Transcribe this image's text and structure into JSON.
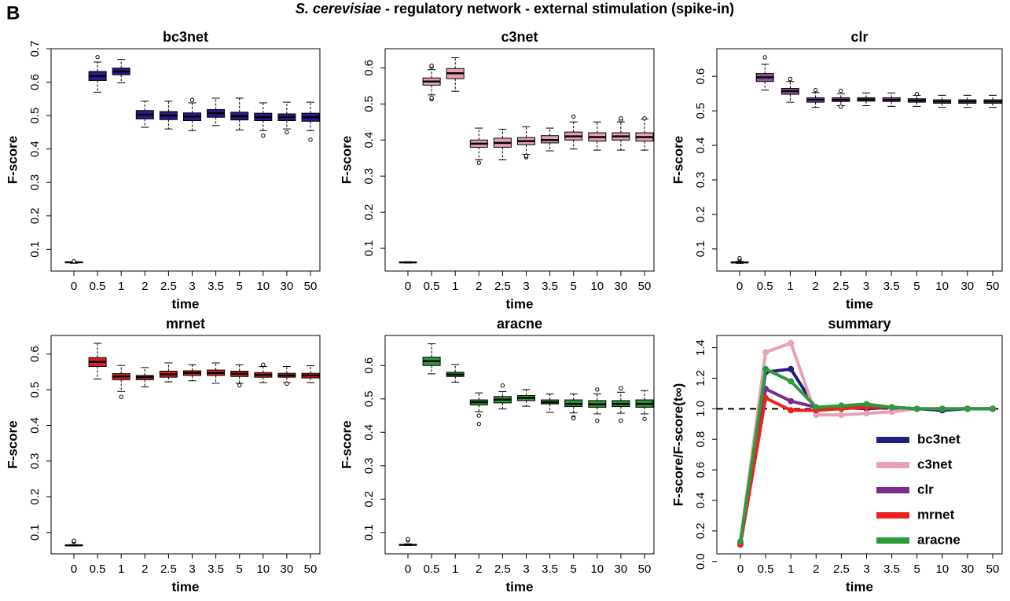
{
  "figure": {
    "label": "B",
    "title_species": "S. cerevisiae",
    "title_rest": "- regulatory network - external stimulation (spike-in)"
  },
  "chart_data": [
    {
      "type": "box",
      "title": "bc3net",
      "xlabel": "time",
      "ylabel": "F-score",
      "color": "#2b1b8c",
      "categories": [
        "0",
        "0.5",
        "1",
        "2",
        "2.5",
        "3",
        "3.5",
        "5",
        "10",
        "30",
        "50"
      ],
      "ylim": [
        0.035,
        0.7
      ],
      "yticks": [
        0.1,
        0.2,
        0.3,
        0.4,
        0.5,
        0.6,
        0.7
      ],
      "boxes": [
        {
          "min": 0.058,
          "q1": 0.06,
          "median": 0.061,
          "q3": 0.062,
          "max": 0.063,
          "outliers": [
            0.064
          ]
        },
        {
          "min": 0.57,
          "q1": 0.605,
          "median": 0.618,
          "q3": 0.632,
          "max": 0.66,
          "outliers": [
            0.675
          ]
        },
        {
          "min": 0.598,
          "q1": 0.622,
          "median": 0.632,
          "q3": 0.642,
          "max": 0.668
        },
        {
          "min": 0.465,
          "q1": 0.49,
          "median": 0.503,
          "q3": 0.515,
          "max": 0.543
        },
        {
          "min": 0.46,
          "q1": 0.488,
          "median": 0.5,
          "q3": 0.512,
          "max": 0.543
        },
        {
          "min": 0.455,
          "q1": 0.485,
          "median": 0.497,
          "q3": 0.508,
          "max": 0.538,
          "outliers": [
            0.547
          ]
        },
        {
          "min": 0.47,
          "q1": 0.495,
          "median": 0.507,
          "q3": 0.518,
          "max": 0.552
        },
        {
          "min": 0.457,
          "q1": 0.487,
          "median": 0.498,
          "q3": 0.51,
          "max": 0.552
        },
        {
          "min": 0.455,
          "q1": 0.485,
          "median": 0.495,
          "q3": 0.507,
          "max": 0.538,
          "outliers": [
            0.44
          ]
        },
        {
          "min": 0.46,
          "q1": 0.485,
          "median": 0.495,
          "q3": 0.505,
          "max": 0.54,
          "outliers": [
            0.45
          ]
        },
        {
          "min": 0.455,
          "q1": 0.483,
          "median": 0.495,
          "q3": 0.507,
          "max": 0.54,
          "outliers": [
            0.428
          ]
        }
      ]
    },
    {
      "type": "box",
      "title": "c3net",
      "xlabel": "time",
      "ylabel": "F-score",
      "color": "#e8a0b0",
      "categories": [
        "0",
        "0.5",
        "1",
        "2",
        "2.5",
        "3",
        "3.5",
        "5",
        "10",
        "30",
        "50"
      ],
      "ylim": [
        0.037,
        0.653
      ],
      "yticks": [
        0.1,
        0.2,
        0.3,
        0.4,
        0.5,
        0.6
      ],
      "boxes": [
        {
          "min": 0.059,
          "q1": 0.06,
          "median": 0.061,
          "q3": 0.062,
          "max": 0.063
        },
        {
          "min": 0.525,
          "q1": 0.552,
          "median": 0.562,
          "q3": 0.572,
          "max": 0.595,
          "outliers": [
            0.513,
            0.517,
            0.603,
            0.606
          ]
        },
        {
          "min": 0.535,
          "q1": 0.57,
          "median": 0.585,
          "q3": 0.598,
          "max": 0.628
        },
        {
          "min": 0.345,
          "q1": 0.38,
          "median": 0.39,
          "q3": 0.4,
          "max": 0.433,
          "outliers": [
            0.337
          ]
        },
        {
          "min": 0.345,
          "q1": 0.38,
          "median": 0.392,
          "q3": 0.405,
          "max": 0.43
        },
        {
          "min": 0.36,
          "q1": 0.387,
          "median": 0.397,
          "q3": 0.407,
          "max": 0.437,
          "outliers": [
            0.352,
            0.356
          ]
        },
        {
          "min": 0.37,
          "q1": 0.392,
          "median": 0.4,
          "q3": 0.412,
          "max": 0.433
        },
        {
          "min": 0.375,
          "q1": 0.4,
          "median": 0.41,
          "q3": 0.422,
          "max": 0.45,
          "outliers": [
            0.465
          ]
        },
        {
          "min": 0.372,
          "q1": 0.397,
          "median": 0.408,
          "q3": 0.42,
          "max": 0.45
        },
        {
          "min": 0.372,
          "q1": 0.4,
          "median": 0.41,
          "q3": 0.42,
          "max": 0.45,
          "outliers": [
            0.455,
            0.46
          ]
        },
        {
          "min": 0.372,
          "q1": 0.397,
          "median": 0.408,
          "q3": 0.42,
          "max": 0.458,
          "outliers": [
            0.46
          ]
        }
      ]
    },
    {
      "type": "box",
      "title": "clr",
      "xlabel": "time",
      "ylabel": "F-score",
      "color": "#9050a8",
      "categories": [
        "0",
        "0.5",
        "1",
        "2",
        "2.5",
        "3",
        "3.5",
        "5",
        "10",
        "30",
        "50"
      ],
      "ylim": [
        0.036,
        0.68
      ],
      "yticks": [
        0.1,
        0.2,
        0.3,
        0.4,
        0.5,
        0.6
      ],
      "boxes": [
        {
          "min": 0.058,
          "q1": 0.06,
          "median": 0.061,
          "q3": 0.062,
          "max": 0.064,
          "outliers": [
            0.07,
            0.073
          ]
        },
        {
          "min": 0.56,
          "q1": 0.585,
          "median": 0.597,
          "q3": 0.608,
          "max": 0.635,
          "outliers": [
            0.655
          ]
        },
        {
          "min": 0.525,
          "q1": 0.548,
          "median": 0.557,
          "q3": 0.565,
          "max": 0.585,
          "outliers": [
            0.592
          ]
        },
        {
          "min": 0.51,
          "q1": 0.525,
          "median": 0.532,
          "q3": 0.538,
          "max": 0.553,
          "outliers": [
            0.56
          ]
        },
        {
          "min": 0.515,
          "q1": 0.527,
          "median": 0.532,
          "q3": 0.538,
          "max": 0.55,
          "outliers": [
            0.512,
            0.558
          ]
        },
        {
          "min": 0.515,
          "q1": 0.528,
          "median": 0.533,
          "q3": 0.538,
          "max": 0.552
        },
        {
          "min": 0.513,
          "q1": 0.527,
          "median": 0.532,
          "q3": 0.538,
          "max": 0.552
        },
        {
          "min": 0.513,
          "q1": 0.525,
          "median": 0.53,
          "q3": 0.535,
          "max": 0.545,
          "outliers": [
            0.549
          ]
        },
        {
          "min": 0.51,
          "q1": 0.522,
          "median": 0.527,
          "q3": 0.532,
          "max": 0.545
        },
        {
          "min": 0.51,
          "q1": 0.522,
          "median": 0.527,
          "q3": 0.532,
          "max": 0.545
        },
        {
          "min": 0.51,
          "q1": 0.522,
          "median": 0.527,
          "q3": 0.532,
          "max": 0.545
        }
      ]
    },
    {
      "type": "box",
      "title": "mrnet",
      "xlabel": "time",
      "ylabel": "F-score",
      "color": "#e02020",
      "categories": [
        "0",
        "0.5",
        "1",
        "2",
        "2.5",
        "3",
        "3.5",
        "5",
        "10",
        "30",
        "50"
      ],
      "ylim": [
        0.04,
        0.652
      ],
      "yticks": [
        0.1,
        0.2,
        0.3,
        0.4,
        0.5,
        0.6
      ],
      "boxes": [
        {
          "min": 0.062,
          "q1": 0.063,
          "median": 0.064,
          "q3": 0.065,
          "max": 0.066,
          "outliers": [
            0.074,
            0.077
          ]
        },
        {
          "min": 0.53,
          "q1": 0.565,
          "median": 0.578,
          "q3": 0.59,
          "max": 0.63
        },
        {
          "min": 0.495,
          "q1": 0.528,
          "median": 0.537,
          "q3": 0.545,
          "max": 0.568,
          "outliers": [
            0.48
          ]
        },
        {
          "min": 0.508,
          "q1": 0.528,
          "median": 0.535,
          "q3": 0.54,
          "max": 0.562
        },
        {
          "min": 0.522,
          "q1": 0.535,
          "median": 0.543,
          "q3": 0.552,
          "max": 0.575
        },
        {
          "min": 0.525,
          "q1": 0.54,
          "median": 0.547,
          "q3": 0.553,
          "max": 0.57
        },
        {
          "min": 0.518,
          "q1": 0.54,
          "median": 0.547,
          "q3": 0.555,
          "max": 0.575
        },
        {
          "min": 0.518,
          "q1": 0.537,
          "median": 0.545,
          "q3": 0.552,
          "max": 0.57,
          "outliers": [
            0.512
          ]
        },
        {
          "min": 0.52,
          "q1": 0.535,
          "median": 0.542,
          "q3": 0.548,
          "max": 0.565,
          "outliers": [
            0.57
          ]
        },
        {
          "min": 0.52,
          "q1": 0.535,
          "median": 0.54,
          "q3": 0.546,
          "max": 0.565,
          "outliers": [
            0.517
          ]
        },
        {
          "min": 0.52,
          "q1": 0.533,
          "median": 0.54,
          "q3": 0.546,
          "max": 0.567
        }
      ]
    },
    {
      "type": "box",
      "title": "aracne",
      "xlabel": "time",
      "ylabel": "F-score",
      "color": "#2a9a3a",
      "categories": [
        "0",
        "0.5",
        "1",
        "2",
        "2.5",
        "3",
        "3.5",
        "5",
        "10",
        "30",
        "50"
      ],
      "ylim": [
        0.036,
        0.69
      ],
      "yticks": [
        0.1,
        0.2,
        0.3,
        0.4,
        0.5,
        0.6
      ],
      "boxes": [
        {
          "min": 0.061,
          "q1": 0.062,
          "median": 0.063,
          "q3": 0.064,
          "max": 0.066,
          "outliers": [
            0.076,
            0.08
          ]
        },
        {
          "min": 0.575,
          "q1": 0.6,
          "median": 0.613,
          "q3": 0.625,
          "max": 0.665
        },
        {
          "min": 0.55,
          "q1": 0.567,
          "median": 0.573,
          "q3": 0.58,
          "max": 0.603
        },
        {
          "min": 0.462,
          "q1": 0.482,
          "median": 0.49,
          "q3": 0.497,
          "max": 0.518,
          "outliers": [
            0.45,
            0.425
          ]
        },
        {
          "min": 0.47,
          "q1": 0.488,
          "median": 0.498,
          "q3": 0.507,
          "max": 0.522,
          "outliers": [
            0.54
          ]
        },
        {
          "min": 0.478,
          "q1": 0.495,
          "median": 0.503,
          "q3": 0.51,
          "max": 0.528
        },
        {
          "min": 0.46,
          "q1": 0.485,
          "median": 0.49,
          "q3": 0.497,
          "max": 0.515
        },
        {
          "min": 0.458,
          "q1": 0.477,
          "median": 0.485,
          "q3": 0.497,
          "max": 0.515,
          "outliers": [
            0.445,
            0.442
          ]
        },
        {
          "min": 0.455,
          "q1": 0.475,
          "median": 0.484,
          "q3": 0.495,
          "max": 0.515,
          "outliers": [
            0.528,
            0.435
          ]
        },
        {
          "min": 0.457,
          "q1": 0.477,
          "median": 0.485,
          "q3": 0.495,
          "max": 0.52,
          "outliers": [
            0.532,
            0.435
          ]
        },
        {
          "min": 0.455,
          "q1": 0.475,
          "median": 0.485,
          "q3": 0.497,
          "max": 0.525,
          "outliers": [
            0.44
          ]
        }
      ]
    },
    {
      "type": "line",
      "title": "summary",
      "xlabel": "time",
      "ylabel": "F-score/F-score(t∞)",
      "categories": [
        "0",
        "0.5",
        "1",
        "2",
        "2.5",
        "3",
        "3.5",
        "5",
        "10",
        "30",
        "50"
      ],
      "ylim": [
        0.05,
        1.48
      ],
      "yticks": [
        {
          "value": 0,
          "label": "0.0"
        },
        0.2,
        0.4,
        0.6,
        0.8,
        {
          "value": 1,
          "label": "1.0"
        },
        1.2,
        1.4
      ],
      "reference_line": 1,
      "legend": "lower right",
      "series": [
        {
          "name": "bc3net",
          "color": "#1f1f80",
          "values": [
            0.12,
            1.24,
            1.26,
            1.0,
            1.01,
            1.0,
            1.01,
            1.0,
            0.99,
            1.0,
            1.0
          ]
        },
        {
          "name": "c3net",
          "color": "#e8a0b4",
          "values": [
            0.13,
            1.37,
            1.43,
            0.96,
            0.96,
            0.97,
            0.98,
            1.0,
            1.0,
            1.0,
            1.0
          ]
        },
        {
          "name": "clr",
          "color": "#7a2a90",
          "values": [
            0.12,
            1.13,
            1.05,
            1.01,
            1.01,
            1.01,
            1.01,
            1.0,
            1.0,
            1.0,
            1.0
          ]
        },
        {
          "name": "mrnet",
          "color": "#ee2020",
          "values": [
            0.11,
            1.07,
            0.99,
            0.99,
            1.0,
            1.01,
            1.01,
            1.0,
            1.0,
            1.0,
            1.0
          ]
        },
        {
          "name": "aracne",
          "color": "#2e9a3e",
          "values": [
            0.13,
            1.26,
            1.18,
            1.01,
            1.02,
            1.03,
            1.01,
            1.0,
            1.0,
            1.0,
            1.0
          ]
        }
      ]
    }
  ]
}
